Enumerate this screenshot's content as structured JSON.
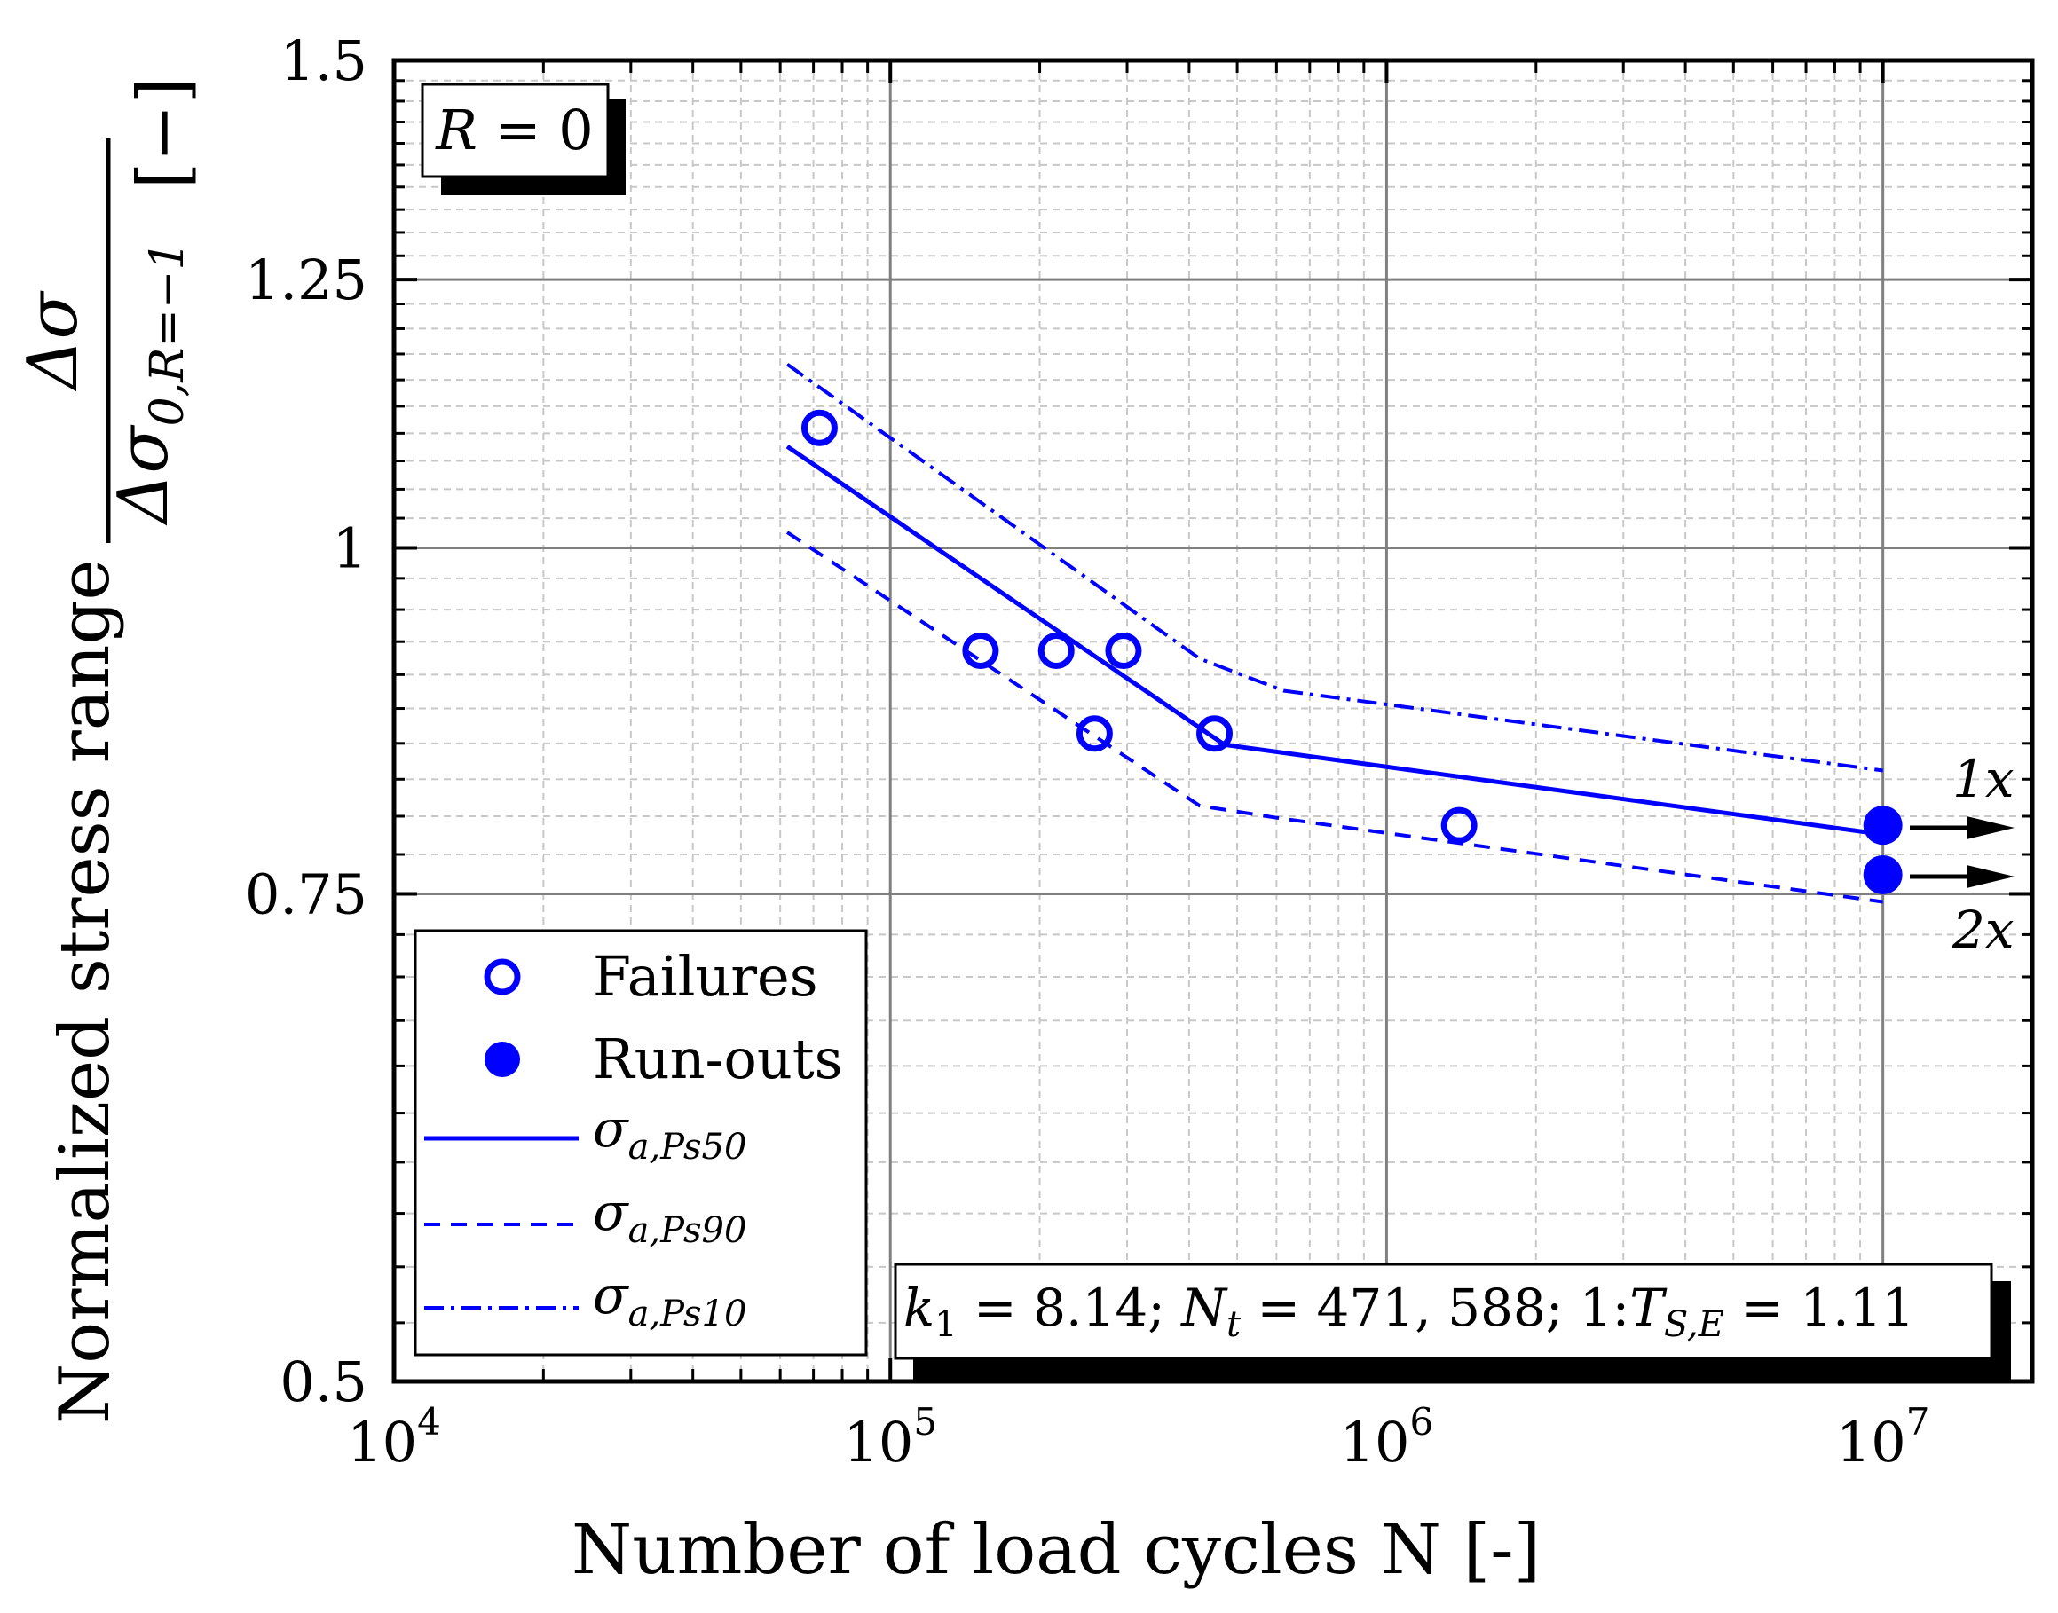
{
  "chart_data": {
    "type": "scatter",
    "title": "",
    "xlabel": "Number of load cycles N [-]",
    "ylabel": {
      "prefix": "Normalized stress range",
      "numerator": "Δσ",
      "denominator": "Δσ",
      "denominator_sub": "0,R=−1",
      "unit": "[−]"
    },
    "xscale": "log",
    "xlim": [
      10000,
      20000000
    ],
    "ylim": [
      0.5,
      1.5
    ],
    "ylog": true,
    "grid": true,
    "xticks": [
      {
        "value": 10000,
        "base": "10",
        "exp": "4"
      },
      {
        "value": 100000,
        "base": "10",
        "exp": "5"
      },
      {
        "value": 1000000,
        "base": "10",
        "exp": "6"
      },
      {
        "value": 10000000,
        "base": "10",
        "exp": "7"
      }
    ],
    "yticks": [
      {
        "value": 0.5,
        "label": "0.5"
      },
      {
        "value": 0.75,
        "label": "0.75"
      },
      {
        "value": 1.0,
        "label": "1"
      },
      {
        "value": 1.25,
        "label": "1.25"
      },
      {
        "value": 1.5,
        "label": "1.5"
      }
    ],
    "series": [
      {
        "name": "Failures",
        "kind": "points",
        "marker": "open-circle",
        "color": "#0000ff",
        "points": [
          {
            "x": 72000,
            "y": 1.105
          },
          {
            "x": 152000,
            "y": 0.918
          },
          {
            "x": 216000,
            "y": 0.918
          },
          {
            "x": 295000,
            "y": 0.918
          },
          {
            "x": 258000,
            "y": 0.857
          },
          {
            "x": 450000,
            "y": 0.857
          },
          {
            "x": 1400000,
            "y": 0.794
          }
        ]
      },
      {
        "name": "Run-outs",
        "kind": "points",
        "marker": "filled-circle",
        "color": "#0000ff",
        "points": [
          {
            "x": 10000000,
            "y": 0.794
          },
          {
            "x": 10000000,
            "y": 0.762
          }
        ]
      },
      {
        "name": "σ_a,Ps50",
        "legend_main": "σ",
        "legend_sub": "a,Ps50",
        "kind": "line",
        "style": "solid",
        "color": "#0000ff",
        "points": [
          {
            "x": 62000,
            "y": 1.088
          },
          {
            "x": 471588,
            "y": 0.849
          },
          {
            "x": 10000000,
            "y": 0.788
          }
        ]
      },
      {
        "name": "σ_a,Ps90",
        "legend_main": "σ",
        "legend_sub": "a,Ps90",
        "kind": "line",
        "style": "dashed",
        "color": "#0000ff",
        "points": [
          {
            "x": 62000,
            "y": 1.013
          },
          {
            "x": 420000,
            "y": 0.807
          },
          {
            "x": 600000,
            "y": 0.799
          },
          {
            "x": 10000000,
            "y": 0.745
          }
        ]
      },
      {
        "name": "σ_a,Ps10",
        "legend_main": "σ",
        "legend_sub": "a,Ps10",
        "kind": "line",
        "style": "dashdot",
        "color": "#0000ff",
        "points": [
          {
            "x": 62000,
            "y": 1.165
          },
          {
            "x": 420000,
            "y": 0.912
          },
          {
            "x": 620000,
            "y": 0.888
          },
          {
            "x": 10000000,
            "y": 0.831
          }
        ]
      }
    ],
    "annotations": {
      "ratio_box": {
        "var": "R",
        "op": " = ",
        "value": "0"
      },
      "params_box": {
        "k_var": "k",
        "k_sub": "1",
        "k_value": " = 8.14; ",
        "n_var": "N",
        "n_sub": "t",
        "n_value": " = 471, 588; ",
        "t_prefix": "1:",
        "t_var": "T",
        "t_sub": "S,E",
        "t_value": " = 1.11"
      },
      "runout_labels": [
        "1x",
        "2x"
      ]
    },
    "legend": {
      "position": "bottom-left"
    }
  }
}
